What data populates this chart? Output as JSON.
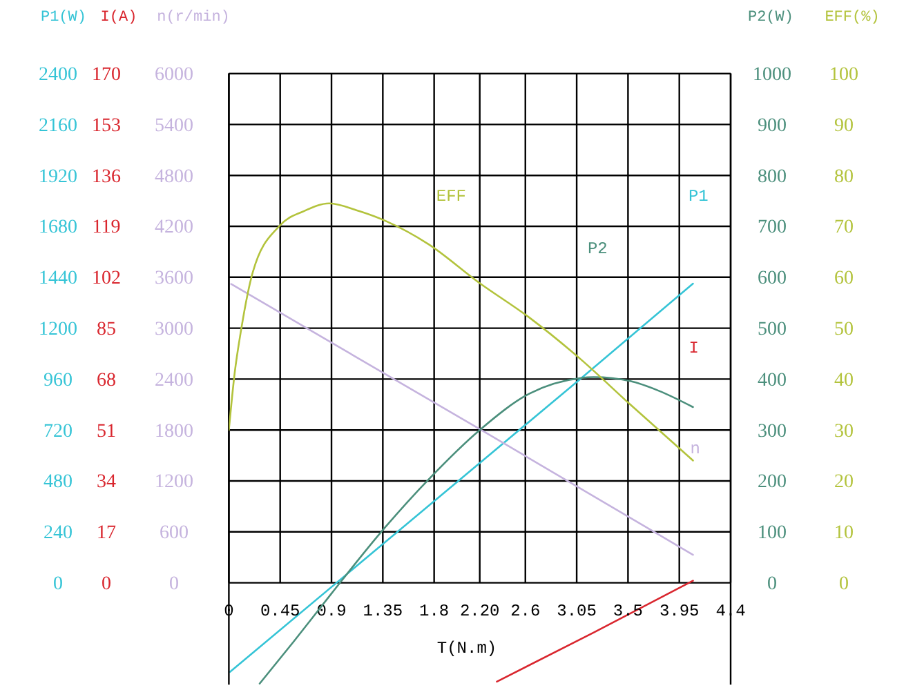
{
  "chart_data": [
    {
      "type": "line",
      "xlabel": "T(N.m)",
      "ylabel": "n(r/min)",
      "y2label": "I(A)",
      "y3label": "P1(W)",
      "xlim": [
        0,
        4.4
      ],
      "xticks": [
        0,
        0.45,
        0.9,
        1.35,
        1.8,
        {
          "value": 2.2,
          "label": "2.20"
        },
        2.6,
        3.05,
        3.5,
        3.95,
        4.4
      ],
      "ylim": [
        -1200,
        6000
      ],
      "yticks": [
        0,
        600,
        1200,
        1800,
        2400,
        3000,
        3600,
        4200,
        4800,
        5400,
        6000
      ],
      "y2lim": [
        -34,
        170
      ],
      "y2ticks": [
        0,
        17,
        34,
        51,
        68,
        85,
        102,
        119,
        136,
        153,
        170
      ],
      "y3lim": [
        -480,
        2400
      ],
      "y3ticks": [
        0,
        240,
        480,
        720,
        960,
        1200,
        1440,
        1680,
        1920,
        2160,
        2400
      ],
      "grid": true,
      "marker": "none",
      "series": [
        {
          "name": "P1",
          "color": "#35c4d6",
          "axis": "y3",
          "x": [
            0.01,
            3.08,
            4.07
          ],
          "values": [
            -420,
            960,
            1410
          ]
        },
        {
          "name": "I",
          "color": "#d9262e",
          "axis": "y2",
          "x": [
            2.35,
            3.2,
            4.07
          ],
          "values": [
            -33,
            -16.6,
            0.7
          ]
        },
        {
          "name": "n",
          "color": "#c5b3de",
          "x": [
            0.02,
            2.2,
            4.07
          ],
          "values": [
            3520,
            1810,
            330
          ]
        }
      ]
    },
    {
      "type": "line",
      "tick_labels": "y",
      "ylabel": "P2(W)",
      "y2label": "EFF(%)",
      "xlim": [
        0,
        4.4
      ],
      "ylim": [
        -200,
        1000
      ],
      "yticks": [
        0,
        100,
        200,
        300,
        400,
        500,
        600,
        700,
        800,
        900,
        1000
      ],
      "y2lim": [
        -20,
        100
      ],
      "y2ticks": [
        0,
        10,
        20,
        30,
        40,
        50,
        60,
        70,
        80,
        90,
        100
      ],
      "marker": "none",
      "series": [
        {
          "name": "P2",
          "color": "#4b8f7c",
          "x": [
            0.27,
            0.57,
            0.9,
            1.34,
            1.76,
            2.2,
            2.64,
            3.08,
            3.2,
            3.52,
            3.77,
            4.07
          ],
          "values": [
            -198,
            -115,
            -21,
            101,
            205,
            300,
            372,
            402,
            404,
            396,
            377,
            345
          ]
        },
        {
          "name": "EFF",
          "color": "#b3c33c",
          "axis": "y2",
          "x": [
            0,
            0.05,
            0.11,
            0.21,
            0.44,
            0.66,
            0.88,
            1.14,
            1.38,
            1.75,
            2.19,
            2.64,
            3.08,
            3.52,
            4.07
          ],
          "values": [
            30,
            41,
            50,
            61,
            70,
            73,
            74.5,
            73,
            71,
            66.5,
            59,
            52,
            44,
            35,
            24
          ]
        }
      ]
    }
  ]
}
